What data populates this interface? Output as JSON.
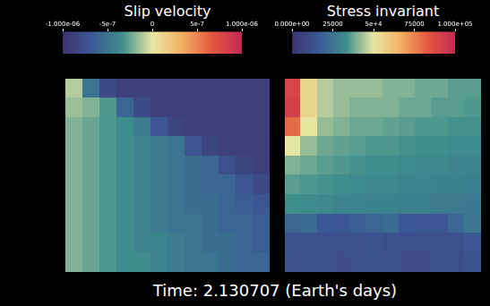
{
  "caption": "Time: 2.130707 (Earth's days)",
  "chart_data": [
    {
      "type": "heatmap",
      "title": "Slip velocity",
      "tick_labels": false,
      "colorbar": {
        "range": [
          -1e-06,
          1e-06
        ],
        "ticks": [
          {
            "value": -1e-06,
            "label": "-1.000e-06"
          },
          {
            "value": -5e-07,
            "label": "-5e-7"
          },
          0,
          {
            "value": 5e-07,
            "label": "5e-7"
          },
          {
            "value": 1e-06,
            "label": "1.000e-06"
          }
        ],
        "colors": [
          "#3f3370",
          "#3a5a94",
          "#3e8f8c",
          "#e8e6a3",
          "#f3b063",
          "#e4573f",
          "#c22a55"
        ]
      },
      "cells": [
        [
          -1e-07,
          -5e-07,
          -8e-07,
          -9e-07,
          -9e-07,
          -9e-07,
          -9e-07,
          -9e-07,
          -9e-07,
          -9e-07,
          -9e-07,
          -9e-07
        ],
        [
          -1.5e-07,
          -2e-07,
          -3e-07,
          -6e-07,
          -8e-07,
          -9e-07,
          -9e-07,
          -9e-07,
          -9e-07,
          -9e-07,
          -9e-07,
          -9e-07
        ],
        [
          -2e-07,
          -2.5e-07,
          -3e-07,
          -3.5e-07,
          -4.5e-07,
          -7e-07,
          -8.5e-07,
          -9e-07,
          -9e-07,
          -9e-07,
          -9e-07,
          -9e-07
        ],
        [
          -2e-07,
          -2.5e-07,
          -3e-07,
          -3.5e-07,
          -4e-07,
          -4.5e-07,
          -5e-07,
          -7e-07,
          -8.5e-07,
          -9e-07,
          -9e-07,
          -9e-07
        ],
        [
          -2e-07,
          -2.5e-07,
          -3e-07,
          -3.5e-07,
          -4e-07,
          -4.5e-07,
          -5e-07,
          -5.5e-07,
          -6e-07,
          -7.5e-07,
          -8.5e-07,
          -9e-07
        ],
        [
          -2e-07,
          -2.5e-07,
          -3e-07,
          -3.5e-07,
          -4e-07,
          -4.5e-07,
          -5e-07,
          -5.5e-07,
          -6e-07,
          -6e-07,
          -7e-07,
          -8e-07
        ],
        [
          -2e-07,
          -2.5e-07,
          -3e-07,
          -3.5e-07,
          -4e-07,
          -4.5e-07,
          -5e-07,
          -5.5e-07,
          -5.5e-07,
          -6e-07,
          -6.5e-07,
          -7e-07
        ],
        [
          -2e-07,
          -2.5e-07,
          -3e-07,
          -3.5e-07,
          -4e-07,
          -4.5e-07,
          -5e-07,
          -5e-07,
          -5.5e-07,
          -6e-07,
          -6e-07,
          -6.5e-07
        ],
        [
          -2e-07,
          -2.5e-07,
          -3e-07,
          -3.5e-07,
          -4e-07,
          -4e-07,
          -4.5e-07,
          -5e-07,
          -5.5e-07,
          -5.5e-07,
          -6e-07,
          -6.5e-07
        ],
        [
          -2e-07,
          -2.5e-07,
          -3e-07,
          -3.5e-07,
          -3.5e-07,
          -4e-07,
          -4.5e-07,
          -5e-07,
          -5e-07,
          -5.5e-07,
          -6e-07,
          -6e-07
        ]
      ]
    },
    {
      "type": "heatmap",
      "title": "Stress invariant",
      "tick_labels": false,
      "colorbar": {
        "range": [
          0,
          100000
        ],
        "ticks": [
          {
            "value": 0,
            "label": "0.000e+00"
          },
          25000,
          {
            "value": 50000,
            "label": "5e+4"
          },
          75000,
          {
            "value": 100000,
            "label": "1.000e+05"
          }
        ],
        "colors": [
          "#3f3370",
          "#3a5a94",
          "#3e8f8c",
          "#e8e6a3",
          "#f3b063",
          "#e4573f",
          "#c22a55"
        ]
      },
      "cells": [
        [
          90000,
          55000,
          45000,
          42000,
          42000,
          42000,
          40000,
          40000,
          38000,
          38000,
          36000,
          36000
        ],
        [
          92000,
          55000,
          45000,
          42000,
          40000,
          40000,
          40000,
          38000,
          38000,
          36000,
          36000,
          35000
        ],
        [
          80000,
          50000,
          42000,
          40000,
          38000,
          38000,
          37000,
          36000,
          35000,
          35000,
          34000,
          34000
        ],
        [
          50000,
          42000,
          38000,
          37000,
          36000,
          35000,
          35000,
          34000,
          33000,
          33000,
          32000,
          32000
        ],
        [
          40000,
          38000,
          36000,
          35000,
          34000,
          33000,
          33000,
          32000,
          31000,
          31000,
          30000,
          30000
        ],
        [
          36000,
          35000,
          34000,
          33000,
          32000,
          31000,
          31000,
          30000,
          30000,
          29000,
          29000,
          28000
        ],
        [
          33000,
          32000,
          31000,
          30000,
          30000,
          29000,
          29000,
          28000,
          28000,
          27000,
          27000,
          26000
        ],
        [
          20000,
          22000,
          16000,
          15000,
          18000,
          20000,
          22000,
          16000,
          15000,
          15000,
          20000,
          25000
        ],
        [
          14000,
          13000,
          12000,
          12000,
          13000,
          14000,
          13000,
          12000,
          12000,
          12000,
          13000,
          15000
        ],
        [
          13000,
          12000,
          12000,
          11000,
          12000,
          13000,
          12000,
          11000,
          11000,
          12000,
          12000,
          14000
        ]
      ]
    }
  ]
}
